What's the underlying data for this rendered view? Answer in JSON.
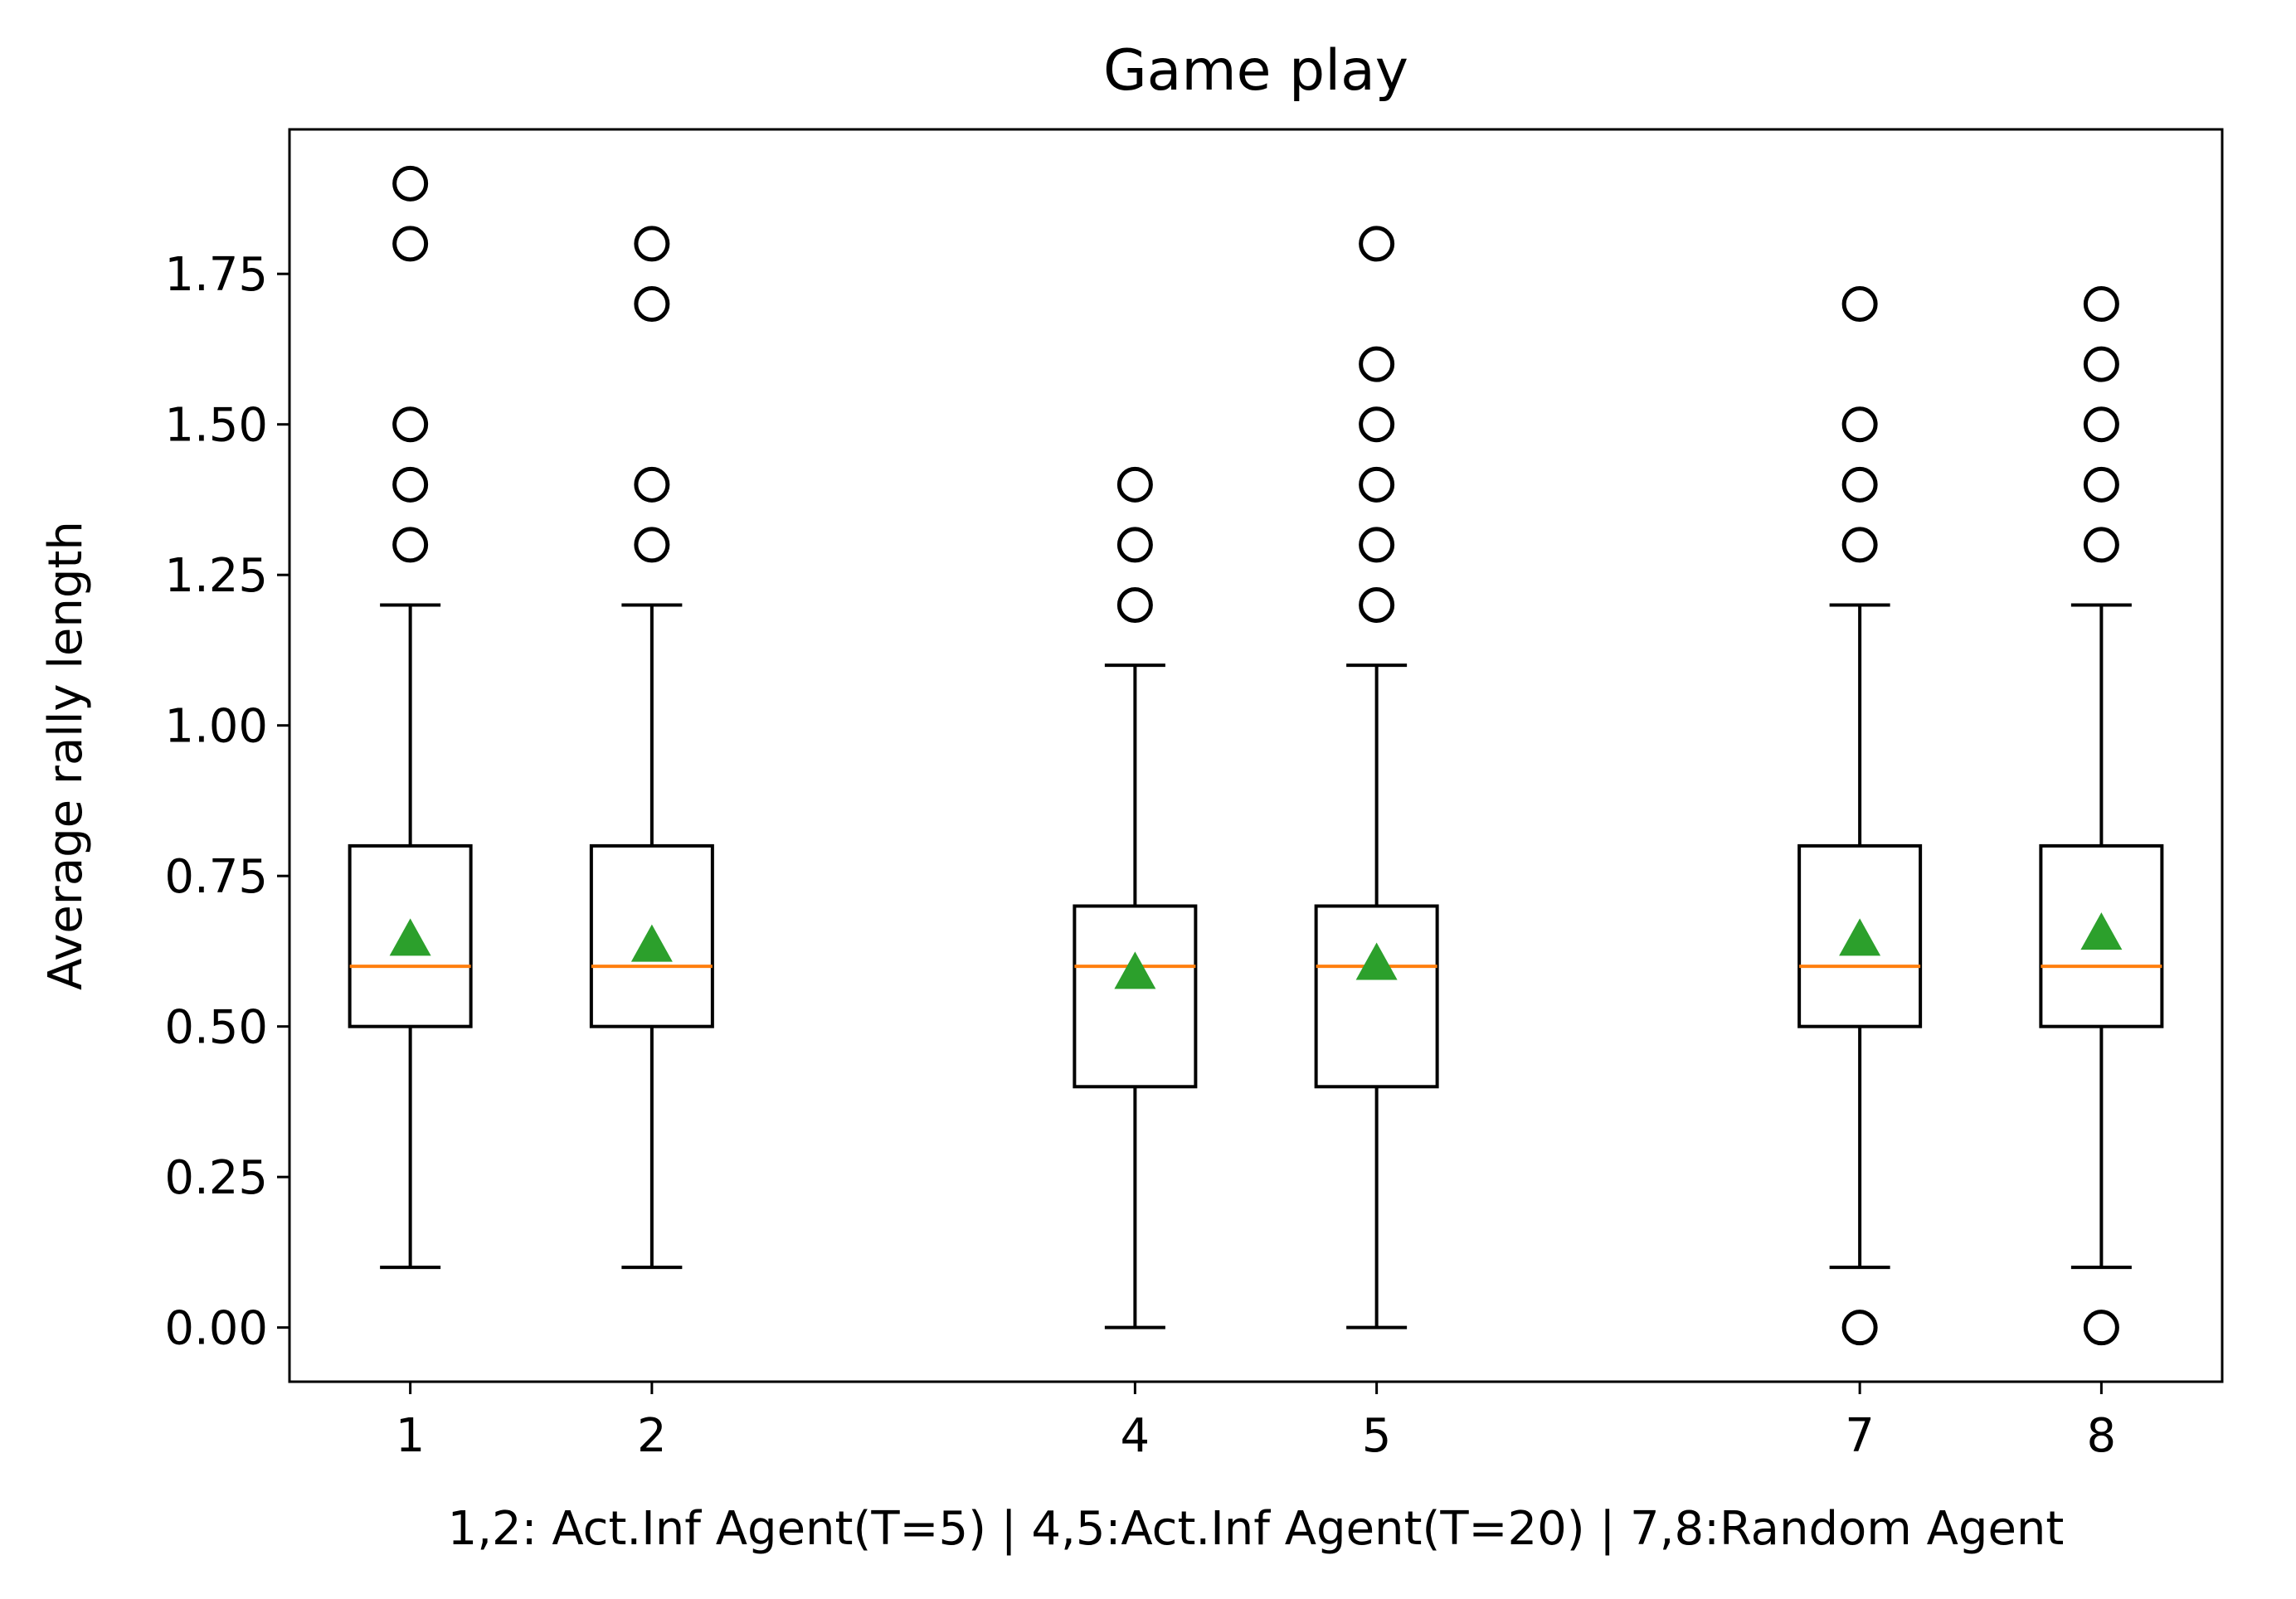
{
  "chart_data": {
    "type": "box",
    "title": "Game play",
    "xlabel": "1,2: Act.Inf Agent(T=5) | 4,5:Act.Inf Agent(T=20) | 7,8:Random Agent",
    "ylabel": "Average rally length",
    "xlim": [
      0.5,
      8.5
    ],
    "ylim": [
      -0.09,
      1.99
    ],
    "yticks": [
      0.0,
      0.25,
      0.5,
      0.75,
      1.0,
      1.25,
      1.5,
      1.75
    ],
    "ytick_labels": [
      "0.00",
      "0.25",
      "0.50",
      "0.75",
      "1.00",
      "1.25",
      "1.50",
      "1.75"
    ],
    "colors": {
      "median": "#ff7f0e",
      "mean": "#2ca02c",
      "box": "#000000"
    },
    "boxes": [
      {
        "label": "1",
        "position": 1,
        "q1": 0.5,
        "median": 0.6,
        "q3": 0.8,
        "whisker_low": 0.1,
        "whisker_high": 1.2,
        "mean": 0.645,
        "outliers": [
          1.3,
          1.4,
          1.5,
          1.8,
          1.9
        ]
      },
      {
        "label": "2",
        "position": 2,
        "q1": 0.5,
        "median": 0.6,
        "q3": 0.8,
        "whisker_low": 0.1,
        "whisker_high": 1.2,
        "mean": 0.635,
        "outliers": [
          1.3,
          1.4,
          1.7,
          1.8
        ]
      },
      {
        "label": "4",
        "position": 4,
        "q1": 0.4,
        "median": 0.6,
        "q3": 0.7,
        "whisker_low": 0.0,
        "whisker_high": 1.1,
        "mean": 0.59,
        "outliers": [
          1.2,
          1.3,
          1.4
        ]
      },
      {
        "label": "5",
        "position": 5,
        "q1": 0.4,
        "median": 0.6,
        "q3": 0.7,
        "whisker_low": 0.0,
        "whisker_high": 1.1,
        "mean": 0.605,
        "outliers": [
          1.2,
          1.3,
          1.4,
          1.5,
          1.6,
          1.8
        ]
      },
      {
        "label": "7",
        "position": 7,
        "q1": 0.5,
        "median": 0.6,
        "q3": 0.8,
        "whisker_low": 0.1,
        "whisker_high": 1.2,
        "mean": 0.645,
        "outliers": [
          0.0,
          1.3,
          1.4,
          1.5,
          1.7
        ]
      },
      {
        "label": "8",
        "position": 8,
        "q1": 0.5,
        "median": 0.6,
        "q3": 0.8,
        "whisker_low": 0.1,
        "whisker_high": 1.2,
        "mean": 0.655,
        "outliers": [
          0.0,
          1.3,
          1.4,
          1.5,
          1.6,
          1.7
        ]
      }
    ]
  }
}
